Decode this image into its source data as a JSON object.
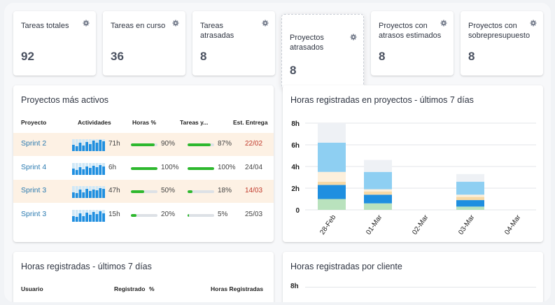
{
  "kpis": [
    {
      "title": "Tareas totales",
      "value": "92"
    },
    {
      "title": "Tareas en curso",
      "value": "36"
    },
    {
      "title": "Tareas atrasadas",
      "value": "8"
    },
    {
      "title": "Proyectos atrasados",
      "value": "8"
    },
    {
      "title": "Proyectos con atrasos estimados",
      "value": "8"
    },
    {
      "title": "Proyectos con sobrepresupuesto",
      "value": "8"
    }
  ],
  "active_projects": {
    "title": "Proyectos más activos",
    "headers": {
      "project": "Proyecto",
      "activities": "Actividades",
      "hours": "Horas %",
      "tasks": "Tareas y...",
      "delivery": "Est. Entrega"
    },
    "rows": [
      {
        "name": "Sprint 2",
        "activity_hours": "71h",
        "hours_pct": "90%",
        "hours_fraction": 0.9,
        "tasks_pct": "87%",
        "tasks_fraction": 0.87,
        "delivery": "22/02",
        "late": true
      },
      {
        "name": "Sprint 4",
        "activity_hours": "6h",
        "hours_pct": "100%",
        "hours_fraction": 1.0,
        "tasks_pct": "100%",
        "tasks_fraction": 1.0,
        "delivery": "24/04",
        "late": false
      },
      {
        "name": "Sprint 3",
        "activity_hours": "47h",
        "hours_pct": "50%",
        "hours_fraction": 0.5,
        "tasks_pct": "18%",
        "tasks_fraction": 0.18,
        "delivery": "14/03",
        "late": true
      },
      {
        "name": "Sprint 3",
        "activity_hours": "15h",
        "hours_pct": "20%",
        "hours_fraction": 0.2,
        "tasks_pct": "5%",
        "tasks_fraction": 0.05,
        "delivery": "25/03",
        "late": false
      }
    ]
  },
  "hours_projects": {
    "title": "Horas registradas en proyectos - últimos 7 días"
  },
  "hours_users": {
    "title": "Horas registradas - últimos 7 días",
    "headers": {
      "user": "Usuario",
      "registered": "Registrado",
      "pct": "%",
      "hours": "Horas Registradas"
    }
  },
  "hours_clients": {
    "title": "Horas registradas por cliente",
    "ytick_top": "8h"
  },
  "colors": {
    "link": "#2a7ab0",
    "progress": "#2eb82e",
    "late_date": "#c0392b",
    "warn_row": "#fdf1e4"
  },
  "chart_data": [
    {
      "type": "bar",
      "stacked": true,
      "title": "Horas registradas en proyectos - últimos 7 días",
      "categories": [
        "28-Feb",
        "01-Mar",
        "02-Mar",
        "03-Mar",
        "04-Mar"
      ],
      "yticks": [
        "0",
        "2h",
        "4h",
        "6h",
        "8h"
      ],
      "ylim": [
        0,
        8
      ],
      "grid": true,
      "series_colors": [
        "#b9e2bd",
        "#1f8fe0",
        "#f7d9a6",
        "#fdf0dc",
        "#8ecff2",
        "#eef1f5"
      ],
      "stacks": [
        [
          1.0,
          1.3,
          0.3,
          0.9,
          2.7,
          1.8
        ],
        [
          0.6,
          0.8,
          0.3,
          0.2,
          1.6,
          1.1
        ],
        [
          0,
          0,
          0,
          0,
          0,
          0
        ],
        [
          0.3,
          0.6,
          0.3,
          0.2,
          1.2,
          0.7
        ],
        [
          0,
          0,
          0,
          0,
          0,
          0
        ]
      ]
    },
    {
      "type": "bar",
      "title": "Horas registradas por cliente",
      "yticks": [
        "8h"
      ]
    }
  ]
}
